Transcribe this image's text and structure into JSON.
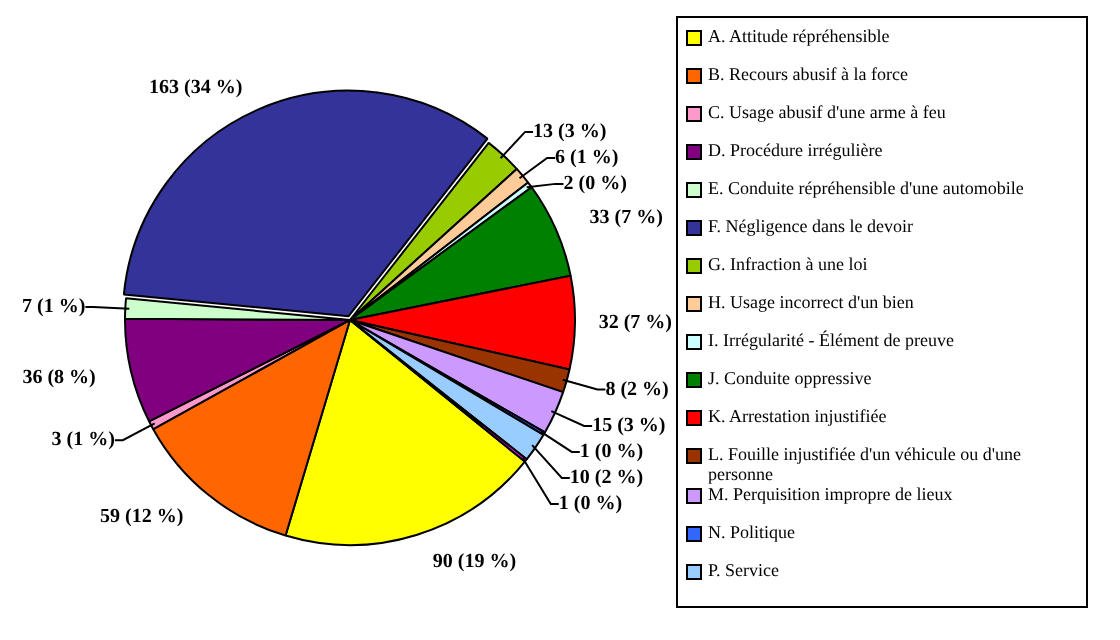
{
  "chart_data": {
    "type": "pie",
    "categories": [
      "A. Attitude répréhensible",
      "B. Recours abusif à la force",
      "C. Usage abusif d'une arme à feu",
      "D. Procédure irrégulière",
      "E. Conduite répréhensible d'une automobile",
      "F. Négligence dans le devoir",
      "G. Infraction à une loi",
      "H. Usage incorrect d'un bien",
      "I. Irrégularité - Élément de preuve",
      "J. Conduite oppressive",
      "K. Arrestation injustifiée",
      "L. Fouille injustifiée d'un véhicule ou d'une personne",
      "M. Perquisition impropre de lieux",
      "N. Politique",
      "P. Service",
      null
    ],
    "values": [
      90,
      59,
      3,
      36,
      7,
      163,
      13,
      6,
      2,
      33,
      32,
      8,
      15,
      1,
      10,
      1
    ],
    "colors": [
      "#ffff00",
      "#ff6600",
      "#ff99cc",
      "#800080",
      "#ccffcc",
      "#333399",
      "#99cc00",
      "#ffcc99",
      "#ccffff",
      "#008000",
      "#ff0000",
      "#993300",
      "#cc99ff",
      "#3366ff",
      "#99ccff",
      "#ff00ff"
    ],
    "value_labels": [
      "90 (19 %)",
      "59 (12 %)",
      "3 (1 %)",
      "36 (8 %)",
      "7 (1 %)",
      "163 (34 %)",
      "13 (3 %)",
      "6 (1 %)",
      "2 (0 %)",
      "33 (7 %)",
      "32 (7 %)",
      "8 (2 %)",
      "15 (3 %)",
      "1 (0 %)",
      "10 (2 %)",
      "1 (0 %)"
    ],
    "legend": "right"
  }
}
